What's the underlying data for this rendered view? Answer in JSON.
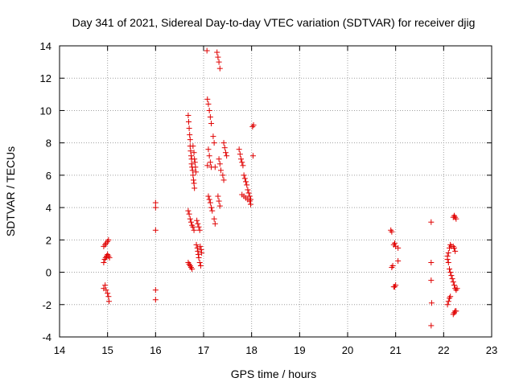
{
  "chart_data": {
    "type": "scatter",
    "title": "Day 341 of 2021, Sidereal Day-to-day VTEC variation (SDTVAR) for receiver djig",
    "xlabel": "GPS time / hours",
    "ylabel": "SDTVAR / TECUs",
    "xlim": [
      14,
      23
    ],
    "ylim": [
      -4,
      14
    ],
    "x_ticks": [
      14,
      15,
      16,
      17,
      18,
      19,
      20,
      21,
      22,
      23
    ],
    "y_ticks": [
      -4,
      -2,
      0,
      2,
      4,
      6,
      8,
      10,
      12,
      14
    ],
    "grid": true,
    "marker": "+",
    "color": "#e00000",
    "series": [
      {
        "name": "SDTVAR",
        "points": [
          [
            14.92,
            1.6
          ],
          [
            14.95,
            1.7
          ],
          [
            14.97,
            1.8
          ],
          [
            15.0,
            1.9
          ],
          [
            15.02,
            2.0
          ],
          [
            14.92,
            0.6
          ],
          [
            14.94,
            0.8
          ],
          [
            14.96,
            0.9
          ],
          [
            14.98,
            1.0
          ],
          [
            15.0,
            1.1
          ],
          [
            15.02,
            1.0
          ],
          [
            15.04,
            0.9
          ],
          [
            14.92,
            -1.0
          ],
          [
            14.95,
            -0.8
          ],
          [
            14.97,
            -1.1
          ],
          [
            15.0,
            -1.3
          ],
          [
            15.02,
            -1.5
          ],
          [
            15.03,
            -1.8
          ],
          [
            16.0,
            4.3
          ],
          [
            16.0,
            4.0
          ],
          [
            16.0,
            2.6
          ],
          [
            16.0,
            -1.1
          ],
          [
            16.0,
            -1.7
          ],
          [
            16.68,
            9.7
          ],
          [
            16.69,
            9.3
          ],
          [
            16.7,
            8.9
          ],
          [
            16.71,
            8.5
          ],
          [
            16.72,
            8.2
          ],
          [
            16.72,
            7.8
          ],
          [
            16.73,
            7.5
          ],
          [
            16.74,
            7.2
          ],
          [
            16.75,
            7.0
          ],
          [
            16.75,
            6.7
          ],
          [
            16.76,
            6.5
          ],
          [
            16.77,
            6.3
          ],
          [
            16.78,
            6.0
          ],
          [
            16.79,
            5.7
          ],
          [
            16.8,
            5.5
          ],
          [
            16.81,
            5.2
          ],
          [
            16.78,
            7.8
          ],
          [
            16.8,
            7.4
          ],
          [
            16.81,
            7.0
          ],
          [
            16.82,
            6.8
          ],
          [
            16.83,
            6.5
          ],
          [
            16.84,
            6.2
          ],
          [
            16.68,
            3.8
          ],
          [
            16.7,
            3.6
          ],
          [
            16.72,
            3.3
          ],
          [
            16.74,
            3.1
          ],
          [
            16.76,
            2.9
          ],
          [
            16.78,
            2.8
          ],
          [
            16.8,
            2.6
          ],
          [
            16.86,
            3.2
          ],
          [
            16.88,
            3.0
          ],
          [
            16.9,
            2.8
          ],
          [
            16.92,
            2.6
          ],
          [
            16.68,
            0.6
          ],
          [
            16.7,
            0.5
          ],
          [
            16.72,
            0.4
          ],
          [
            16.74,
            0.3
          ],
          [
            16.76,
            0.2
          ],
          [
            16.85,
            1.7
          ],
          [
            16.87,
            1.5
          ],
          [
            16.88,
            1.3
          ],
          [
            16.89,
            1.1
          ],
          [
            16.9,
            0.9
          ],
          [
            16.92,
            0.6
          ],
          [
            16.94,
            0.4
          ],
          [
            16.93,
            1.6
          ],
          [
            16.95,
            1.4
          ],
          [
            16.96,
            1.2
          ],
          [
            17.07,
            13.7
          ],
          [
            17.28,
            13.6
          ],
          [
            17.3,
            13.3
          ],
          [
            17.32,
            13.0
          ],
          [
            17.34,
            12.6
          ],
          [
            17.08,
            10.7
          ],
          [
            17.1,
            10.4
          ],
          [
            17.12,
            10.0
          ],
          [
            17.14,
            9.6
          ],
          [
            17.16,
            9.2
          ],
          [
            17.1,
            7.6
          ],
          [
            17.12,
            7.2
          ],
          [
            17.14,
            6.8
          ],
          [
            17.16,
            6.5
          ],
          [
            17.08,
            6.6
          ],
          [
            17.2,
            8.4
          ],
          [
            17.22,
            8.0
          ],
          [
            17.24,
            6.5
          ],
          [
            17.1,
            4.7
          ],
          [
            17.12,
            4.5
          ],
          [
            17.14,
            4.3
          ],
          [
            17.16,
            4.0
          ],
          [
            17.18,
            3.8
          ],
          [
            17.22,
            3.3
          ],
          [
            17.24,
            3.0
          ],
          [
            17.3,
            4.7
          ],
          [
            17.32,
            4.4
          ],
          [
            17.34,
            4.1
          ],
          [
            17.32,
            7.0
          ],
          [
            17.34,
            6.7
          ],
          [
            17.36,
            6.3
          ],
          [
            17.42,
            8.0
          ],
          [
            17.44,
            7.7
          ],
          [
            17.46,
            7.4
          ],
          [
            17.48,
            7.2
          ],
          [
            17.4,
            6.0
          ],
          [
            17.42,
            5.7
          ],
          [
            17.74,
            7.6
          ],
          [
            17.76,
            7.3
          ],
          [
            17.78,
            7.0
          ],
          [
            17.8,
            6.8
          ],
          [
            17.82,
            6.6
          ],
          [
            17.84,
            6.0
          ],
          [
            17.86,
            5.8
          ],
          [
            17.88,
            5.6
          ],
          [
            17.9,
            5.4
          ],
          [
            17.92,
            5.1
          ],
          [
            17.94,
            4.9
          ],
          [
            17.96,
            4.7
          ],
          [
            17.98,
            4.5
          ],
          [
            17.8,
            4.8
          ],
          [
            17.84,
            4.7
          ],
          [
            17.88,
            4.6
          ],
          [
            17.92,
            4.5
          ],
          [
            17.96,
            4.4
          ],
          [
            17.98,
            4.2
          ],
          [
            18.02,
            9.0
          ],
          [
            18.04,
            9.1
          ],
          [
            18.03,
            7.2
          ],
          [
            20.9,
            2.6
          ],
          [
            20.92,
            2.5
          ],
          [
            20.96,
            1.7
          ],
          [
            20.98,
            1.8
          ],
          [
            21.0,
            1.6
          ],
          [
            21.05,
            1.5
          ],
          [
            20.92,
            0.3
          ],
          [
            20.94,
            0.4
          ],
          [
            21.05,
            0.7
          ],
          [
            20.96,
            -0.9
          ],
          [
            20.98,
            -0.9
          ],
          [
            21.0,
            -0.8
          ],
          [
            21.74,
            3.1
          ],
          [
            21.74,
            0.6
          ],
          [
            21.74,
            -0.5
          ],
          [
            21.75,
            -1.9
          ],
          [
            21.74,
            -3.3
          ],
          [
            22.08,
            1.0
          ],
          [
            22.1,
            1.2
          ],
          [
            22.12,
            1.5
          ],
          [
            22.14,
            1.7
          ],
          [
            22.16,
            1.6
          ],
          [
            22.2,
            1.6
          ],
          [
            22.22,
            1.5
          ],
          [
            22.24,
            1.3
          ],
          [
            22.08,
            0.8
          ],
          [
            22.1,
            0.6
          ],
          [
            22.12,
            0.2
          ],
          [
            22.14,
            0.0
          ],
          [
            22.16,
            -0.2
          ],
          [
            22.18,
            -0.4
          ],
          [
            22.2,
            -0.6
          ],
          [
            22.22,
            -0.8
          ],
          [
            22.24,
            -1.0
          ],
          [
            22.26,
            -1.1
          ],
          [
            22.28,
            -1.0
          ],
          [
            22.08,
            -2.0
          ],
          [
            22.1,
            -1.8
          ],
          [
            22.12,
            -1.6
          ],
          [
            22.14,
            -1.5
          ],
          [
            22.2,
            -2.6
          ],
          [
            22.22,
            -2.5
          ],
          [
            22.24,
            -2.4
          ],
          [
            22.26,
            -2.4
          ],
          [
            22.2,
            3.4
          ],
          [
            22.22,
            3.5
          ],
          [
            22.24,
            3.4
          ],
          [
            22.26,
            3.3
          ]
        ]
      }
    ]
  }
}
